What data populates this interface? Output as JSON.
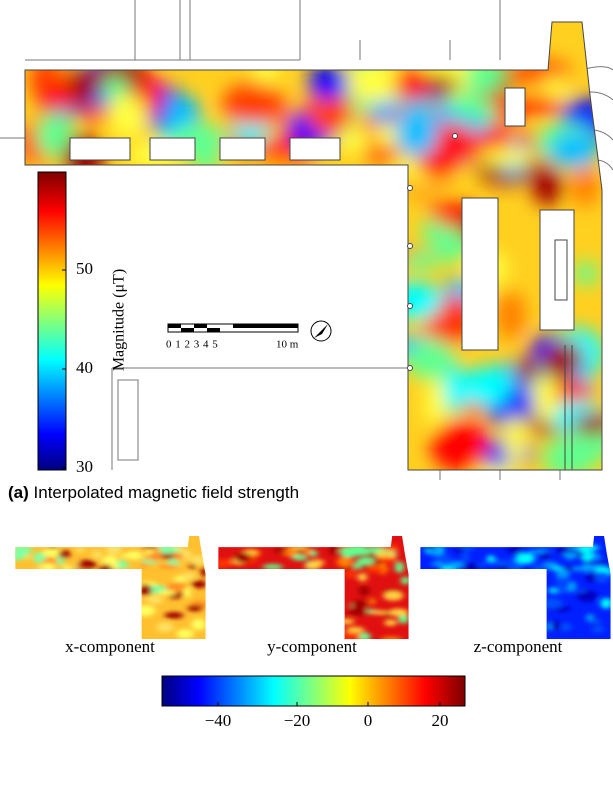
{
  "magnitude_map": {
    "colorbar_title": "Magnitude (μT)",
    "colorbar_ticks": [
      "50",
      "40",
      "30"
    ],
    "scale_bar": {
      "ticks": "0 1 2 3 4 5",
      "end": "10 m"
    }
  },
  "caption": {
    "label": "(a)",
    "text": "Interpolated magnetic field strength"
  },
  "components": [
    "x-component",
    "y-component",
    "z-component"
  ],
  "component_colorbar_ticks": [
    "−40",
    "−20",
    "0",
    "20"
  ]
}
